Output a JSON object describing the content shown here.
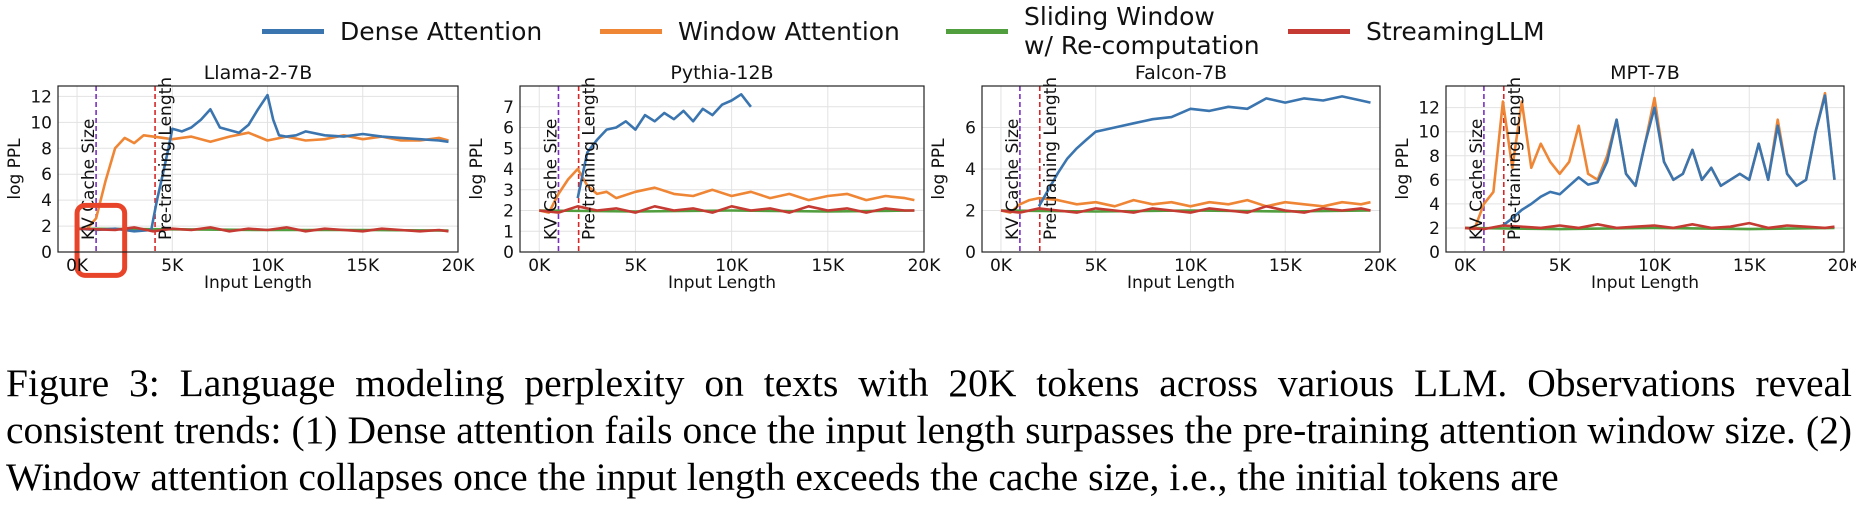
{
  "legend": [
    {
      "name": "Dense Attention",
      "color": "#3b75af"
    },
    {
      "name": "Window Attention",
      "color": "#ef8636"
    },
    {
      "name": "Sliding Window\nw/ Re-computation",
      "color": "#519e3e"
    },
    {
      "name": "StreamingLLM",
      "color": "#c53a32"
    }
  ],
  "markers": {
    "kv_label": "KV Cache Size",
    "pretrain_label": "Pre-training Length",
    "kv_color": "#7b2fbf",
    "pretrain_color": "#d62728"
  },
  "highlight_color": "#e8442a",
  "chart_data": [
    {
      "type": "line",
      "title": "Llama-2-7B",
      "xlabel": "Input Length",
      "ylabel": "log PPL",
      "xlim": [
        -1000,
        20000
      ],
      "ylim": [
        0,
        12.8
      ],
      "xticks": [
        0,
        5000,
        10000,
        15000,
        20000
      ],
      "xticklabels": [
        "0K",
        "5K",
        "10K",
        "15K",
        "20K"
      ],
      "yticks": [
        0,
        2,
        4,
        6,
        8,
        10,
        12
      ],
      "grid": true,
      "kv_cache_size": 1000,
      "pretrain_length": 4096,
      "highlight": {
        "x": [
          0,
          2500
        ],
        "y": [
          -1.8,
          3.6
        ]
      },
      "series": [
        {
          "name": "Dense Attention",
          "x": [
            0,
            1000,
            2000,
            3000,
            3900,
            4000,
            4200,
            4500,
            4800,
            5000,
            5500,
            6000,
            6500,
            7000,
            7500,
            8000,
            8500,
            9000,
            9500,
            10000,
            10300,
            10600,
            11000,
            11500,
            12000,
            13000,
            14000,
            15000,
            16000,
            17000,
            18000,
            19000,
            19500
          ],
          "y": [
            1.8,
            1.7,
            1.8,
            1.6,
            1.7,
            2.5,
            4.0,
            6.0,
            8.0,
            9.5,
            9.3,
            9.6,
            10.2,
            11.0,
            9.6,
            9.4,
            9.2,
            9.8,
            11.0,
            12.1,
            10.2,
            9.0,
            8.9,
            9.0,
            9.3,
            9.0,
            8.9,
            9.1,
            8.9,
            8.8,
            8.7,
            8.6,
            8.5
          ]
        },
        {
          "name": "Window Attention",
          "x": [
            0,
            500,
            1000,
            1500,
            2000,
            2500,
            3000,
            3500,
            4000,
            5000,
            6000,
            7000,
            8000,
            9000,
            10000,
            11000,
            12000,
            13000,
            14000,
            15000,
            16000,
            17000,
            18000,
            19000,
            19500
          ],
          "y": [
            1.8,
            1.75,
            2.6,
            5.5,
            8.0,
            8.8,
            8.4,
            9.0,
            8.9,
            8.7,
            8.9,
            8.5,
            8.9,
            9.2,
            8.6,
            8.9,
            8.6,
            8.7,
            9.0,
            8.7,
            8.9,
            8.6,
            8.6,
            8.8,
            8.6
          ]
        },
        {
          "name": "Sliding Window\nw/ Re-computation",
          "x": [
            0,
            5000,
            10000,
            15000,
            19500
          ],
          "y": [
            1.8,
            1.75,
            1.7,
            1.7,
            1.65
          ]
        },
        {
          "name": "StreamingLLM",
          "x": [
            0,
            1000,
            2000,
            3000,
            4000,
            5000,
            6000,
            7000,
            8000,
            9000,
            10000,
            11000,
            12000,
            13000,
            14000,
            15000,
            16000,
            17000,
            18000,
            19000,
            19500
          ],
          "y": [
            1.8,
            1.75,
            1.7,
            1.9,
            1.6,
            1.8,
            1.7,
            1.9,
            1.6,
            1.8,
            1.7,
            1.9,
            1.6,
            1.8,
            1.7,
            1.6,
            1.8,
            1.7,
            1.6,
            1.7,
            1.6
          ]
        }
      ]
    },
    {
      "type": "line",
      "title": "Pythia-12B",
      "xlabel": "Input Length",
      "ylabel": "log PPL",
      "xlim": [
        -1000,
        20000
      ],
      "ylim": [
        0,
        8.0
      ],
      "xticks": [
        0,
        5000,
        10000,
        15000,
        20000
      ],
      "xticklabels": [
        "0K",
        "5K",
        "10K",
        "15K",
        "20K"
      ],
      "yticks": [
        0,
        1,
        2,
        3,
        4,
        5,
        6,
        7
      ],
      "grid": true,
      "kv_cache_size": 1000,
      "pretrain_length": 2048,
      "series": [
        {
          "name": "Dense Attention",
          "x": [
            2000,
            2200,
            2500,
            3000,
            3500,
            4000,
            4500,
            5000,
            5500,
            6000,
            6500,
            7000,
            7500,
            8000,
            8500,
            9000,
            9500,
            10000,
            10500,
            11000
          ],
          "y": [
            2.6,
            3.5,
            4.8,
            5.4,
            5.9,
            6.0,
            6.3,
            5.9,
            6.6,
            6.3,
            6.7,
            6.4,
            6.8,
            6.3,
            6.9,
            6.6,
            7.1,
            7.3,
            7.6,
            7.0
          ]
        },
        {
          "name": "Window Attention",
          "x": [
            0,
            500,
            1000,
            1500,
            2000,
            2500,
            3000,
            3500,
            4000,
            5000,
            6000,
            7000,
            8000,
            9000,
            10000,
            11000,
            12000,
            13000,
            14000,
            15000,
            16000,
            17000,
            18000,
            19000,
            19500
          ],
          "y": [
            2.0,
            1.9,
            2.8,
            3.5,
            4.0,
            3.2,
            2.8,
            2.9,
            2.6,
            2.9,
            3.1,
            2.8,
            2.7,
            3.0,
            2.7,
            2.9,
            2.6,
            2.8,
            2.5,
            2.7,
            2.8,
            2.5,
            2.7,
            2.6,
            2.5
          ]
        },
        {
          "name": "Sliding Window\nw/ Re-computation",
          "x": [
            0,
            5000,
            10000,
            15000,
            19500
          ],
          "y": [
            2.0,
            1.95,
            2.0,
            1.95,
            2.0
          ]
        },
        {
          "name": "StreamingLLM",
          "x": [
            0,
            1000,
            2000,
            3000,
            4000,
            5000,
            6000,
            7000,
            8000,
            9000,
            10000,
            11000,
            12000,
            13000,
            14000,
            15000,
            16000,
            17000,
            18000,
            19000,
            19500
          ],
          "y": [
            2.0,
            1.9,
            2.2,
            2.0,
            2.1,
            1.9,
            2.2,
            2.0,
            2.1,
            1.9,
            2.2,
            2.0,
            2.1,
            1.9,
            2.2,
            2.0,
            2.1,
            1.9,
            2.1,
            2.0,
            2.0
          ]
        }
      ]
    },
    {
      "type": "line",
      "title": "Falcon-7B",
      "xlabel": "Input Length",
      "ylabel": "log PPL",
      "xlim": [
        -1000,
        20000
      ],
      "ylim": [
        0,
        8.0
      ],
      "xticks": [
        0,
        5000,
        10000,
        15000,
        20000
      ],
      "xticklabels": [
        "0K",
        "5K",
        "10K",
        "15K",
        "20K"
      ],
      "yticks": [
        0,
        2,
        4,
        6
      ],
      "grid": true,
      "kv_cache_size": 1000,
      "pretrain_length": 2048,
      "series": [
        {
          "name": "Dense Attention",
          "x": [
            2000,
            2500,
            3000,
            3500,
            4000,
            4500,
            5000,
            5500,
            6000,
            7000,
            8000,
            9000,
            10000,
            11000,
            12000,
            13000,
            14000,
            15000,
            16000,
            17000,
            18000,
            19000,
            19500
          ],
          "y": [
            2.2,
            3.0,
            3.8,
            4.5,
            5.0,
            5.4,
            5.8,
            5.9,
            6.0,
            6.2,
            6.4,
            6.5,
            6.9,
            6.8,
            7.0,
            6.9,
            7.4,
            7.2,
            7.4,
            7.3,
            7.5,
            7.3,
            7.2
          ]
        },
        {
          "name": "Window Attention",
          "x": [
            0,
            500,
            1000,
            1500,
            2000,
            3000,
            4000,
            5000,
            6000,
            7000,
            8000,
            9000,
            10000,
            11000,
            12000,
            13000,
            14000,
            15000,
            16000,
            17000,
            18000,
            19000,
            19500
          ],
          "y": [
            2.0,
            1.9,
            2.3,
            2.5,
            2.6,
            2.5,
            2.3,
            2.4,
            2.2,
            2.5,
            2.3,
            2.4,
            2.2,
            2.4,
            2.3,
            2.5,
            2.2,
            2.4,
            2.3,
            2.2,
            2.4,
            2.3,
            2.4
          ]
        },
        {
          "name": "Sliding Window\nw/ Re-computation",
          "x": [
            0,
            5000,
            10000,
            15000,
            19500
          ],
          "y": [
            2.0,
            1.95,
            2.0,
            1.95,
            2.0
          ]
        },
        {
          "name": "StreamingLLM",
          "x": [
            0,
            1000,
            2000,
            3000,
            4000,
            5000,
            6000,
            7000,
            8000,
            9000,
            10000,
            11000,
            12000,
            13000,
            14000,
            15000,
            16000,
            17000,
            18000,
            19000,
            19500
          ],
          "y": [
            2.0,
            1.9,
            2.1,
            2.0,
            1.9,
            2.1,
            2.0,
            1.9,
            2.1,
            2.0,
            1.9,
            2.1,
            2.0,
            1.9,
            2.2,
            2.0,
            1.9,
            2.1,
            2.0,
            2.1,
            2.0
          ]
        }
      ]
    },
    {
      "type": "line",
      "title": "MPT-7B",
      "xlabel": "Input Length",
      "ylabel": "log PPL",
      "xlim": [
        -1000,
        20000
      ],
      "ylim": [
        0,
        13.8
      ],
      "xticks": [
        0,
        5000,
        10000,
        15000,
        20000
      ],
      "xticklabels": [
        "0K",
        "5K",
        "10K",
        "15K",
        "20K"
      ],
      "yticks": [
        0,
        2,
        4,
        6,
        8,
        10,
        12
      ],
      "grid": true,
      "kv_cache_size": 1000,
      "pretrain_length": 2048,
      "series": [
        {
          "name": "Dense Attention",
          "x": [
            2000,
            2500,
            3000,
            3500,
            4000,
            4500,
            5000,
            5500,
            6000,
            6500,
            7000,
            7500,
            8000,
            8500,
            9000,
            9500,
            10000,
            10500,
            11000,
            11500,
            12000,
            12500,
            13000,
            13500,
            14000,
            14500,
            15000,
            15500,
            16000,
            16500,
            17000,
            17500,
            18000,
            18500,
            19000,
            19500
          ],
          "y": [
            2.2,
            2.8,
            3.5,
            4.0,
            4.6,
            5.0,
            4.8,
            5.5,
            6.2,
            5.6,
            5.8,
            7.5,
            11.0,
            6.5,
            5.5,
            9.0,
            12.0,
            7.5,
            6.0,
            6.5,
            8.5,
            6.0,
            7.0,
            5.5,
            6.0,
            6.5,
            6.0,
            9.0,
            6.0,
            10.5,
            6.5,
            5.5,
            6.0,
            10.0,
            13.0,
            6.0
          ]
        },
        {
          "name": "Window Attention",
          "x": [
            0,
            500,
            1000,
            1500,
            2000,
            2500,
            3000,
            3500,
            4000,
            4500,
            5000,
            5500,
            6000,
            6500,
            7000,
            7500,
            8000,
            8500,
            9000,
            9500,
            10000,
            10500,
            11000,
            11500,
            12000,
            12500,
            13000,
            13500,
            14000,
            14500,
            15000,
            15500,
            16000,
            16500,
            17000,
            17500,
            18000,
            18500,
            19000,
            19500
          ],
          "y": [
            2.0,
            1.9,
            4.0,
            5.0,
            12.5,
            7.0,
            12.5,
            7.0,
            9.0,
            7.5,
            6.5,
            7.5,
            10.5,
            6.5,
            6.0,
            8.0,
            11.0,
            6.5,
            5.5,
            9.0,
            12.8,
            7.5,
            6.0,
            6.5,
            8.5,
            6.0,
            7.0,
            5.5,
            6.0,
            6.5,
            6.0,
            9.0,
            6.0,
            11.0,
            6.5,
            5.5,
            6.0,
            10.0,
            13.2,
            6.0
          ]
        },
        {
          "name": "Sliding Window\nw/ Re-computation",
          "x": [
            0,
            5000,
            10000,
            15000,
            19500
          ],
          "y": [
            2.0,
            1.9,
            2.0,
            1.9,
            2.0
          ]
        },
        {
          "name": "StreamingLLM",
          "x": [
            0,
            1000,
            2000,
            3000,
            4000,
            5000,
            6000,
            7000,
            8000,
            9000,
            10000,
            11000,
            12000,
            13000,
            14000,
            15000,
            16000,
            17000,
            18000,
            19000,
            19500
          ],
          "y": [
            2.0,
            1.9,
            2.2,
            2.1,
            2.0,
            2.2,
            2.0,
            2.3,
            2.0,
            2.1,
            2.2,
            2.0,
            2.3,
            2.0,
            2.1,
            2.4,
            2.0,
            2.2,
            2.1,
            2.0,
            2.1
          ]
        }
      ]
    }
  ],
  "caption": {
    "prefix": "Figure 3:",
    "text": "Language modeling perplexity on texts with 20K tokens across various LLM. Observations reveal consistent trends: (1) Dense attention fails once the input length surpasses the pre-training attention window size. (2) Window attention collapses once the input length exceeds the cache size, i.e., the initial tokens are"
  }
}
